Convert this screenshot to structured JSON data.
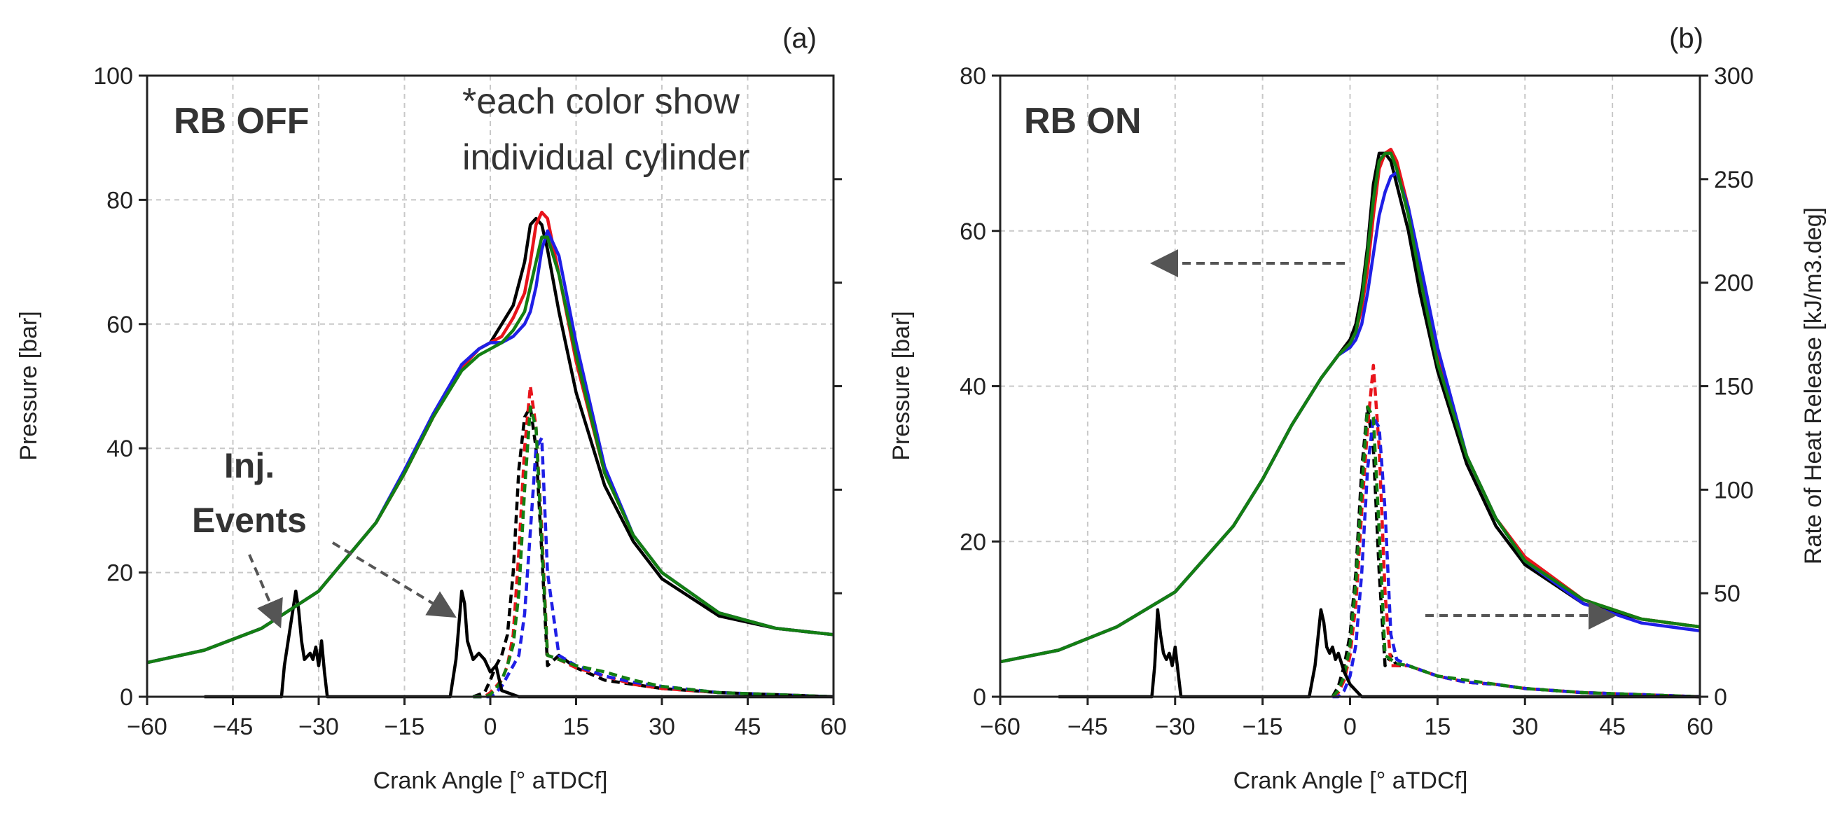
{
  "colors": {
    "black": "#000000",
    "red": "#e8141b",
    "blue": "#1f1fe6",
    "green": "#137f13",
    "arrow": "#555555",
    "grid": "#c8c8c8"
  },
  "chart_data": [
    {
      "type": "line",
      "panel_label": "(a)",
      "title": "RB OFF",
      "note_line1": "*each color show",
      "note_line2": "individual cylinder",
      "annotation_line1": "Inj.",
      "annotation_line2": "Events",
      "xlabel": "Crank Angle [° aTDCf]",
      "ylabel": "Pressure [bar]",
      "xlim": [
        -60,
        60
      ],
      "ylim": [
        0,
        100
      ],
      "xticks": [
        -60,
        -45,
        -30,
        -15,
        0,
        15,
        30,
        45,
        60
      ],
      "xtick_labels": [
        "−60",
        "−45",
        "−30",
        "−15",
        "0",
        "15",
        "30",
        "45",
        "60"
      ],
      "yticks": [
        0,
        20,
        40,
        60,
        80,
        100
      ],
      "ytick_labels": [
        "0",
        "20",
        "40",
        "60",
        "80",
        "100"
      ],
      "right_ylim": [
        0,
        300
      ],
      "right_yticks": [
        50,
        100,
        150,
        200,
        250
      ],
      "right_ytick_labels": [],
      "grid": true,
      "pressure_series": [
        {
          "name": "black",
          "x": [
            -60,
            -50,
            -40,
            -30,
            -20,
            -15,
            -10,
            -5,
            -2,
            0,
            2,
            4,
            6,
            7,
            8,
            9,
            10,
            12,
            15,
            20,
            25,
            30,
            40,
            50,
            60
          ],
          "y": [
            5.5,
            7.5,
            11,
            17,
            28,
            36,
            45,
            53,
            56,
            57,
            60,
            63,
            70,
            76,
            77,
            76,
            72,
            62,
            49,
            34,
            25,
            19,
            13,
            11,
            10
          ]
        },
        {
          "name": "red",
          "x": [
            -60,
            -50,
            -40,
            -30,
            -20,
            -15,
            -10,
            -5,
            -2,
            0,
            2,
            4,
            6,
            7,
            8,
            9,
            10,
            12,
            15,
            20,
            25,
            30,
            40,
            50,
            60
          ],
          "y": [
            5.5,
            7.5,
            11,
            17,
            28,
            36,
            45,
            53,
            56,
            57,
            58,
            61,
            65,
            70,
            76,
            78,
            77,
            68,
            54,
            36,
            26,
            20,
            13.5,
            11,
            10
          ]
        },
        {
          "name": "blue",
          "x": [
            -60,
            -50,
            -40,
            -30,
            -20,
            -15,
            -10,
            -5,
            -2,
            0,
            2,
            4,
            6,
            7,
            8,
            9,
            10,
            12,
            15,
            20,
            25,
            30,
            40,
            50,
            60
          ],
          "y": [
            5.5,
            7.5,
            11,
            17,
            28,
            36.5,
            45.5,
            53.5,
            56,
            57,
            57,
            58,
            60,
            62,
            66,
            72,
            75,
            71,
            57,
            37,
            26,
            20,
            13.5,
            11,
            10
          ]
        },
        {
          "name": "green",
          "x": [
            -60,
            -50,
            -40,
            -30,
            -20,
            -15,
            -10,
            -5,
            -2,
            0,
            2,
            4,
            6,
            7,
            8,
            9,
            10,
            12,
            15,
            20,
            25,
            30,
            40,
            50,
            60
          ],
          "y": [
            5.5,
            7.5,
            11,
            17,
            28,
            36,
            45,
            52.5,
            55,
            56,
            57,
            59,
            62,
            66,
            70,
            74,
            74,
            68,
            55,
            36,
            26,
            20,
            13.5,
            11,
            10
          ]
        }
      ],
      "heat_release_series": [
        {
          "name": "black",
          "x": [
            -3,
            -1,
            0,
            1,
            2,
            3,
            4,
            5,
            6,
            7,
            8,
            9,
            10,
            12,
            15,
            20,
            25,
            30,
            40,
            50,
            60
          ],
          "y": [
            0,
            2,
            8,
            15,
            20,
            30,
            60,
            110,
            135,
            140,
            120,
            70,
            15,
            20,
            14,
            8,
            6,
            4,
            2,
            1,
            0
          ]
        },
        {
          "name": "red",
          "x": [
            -3,
            -1,
            0,
            1,
            2,
            3,
            4,
            5,
            6,
            7,
            8,
            9,
            10,
            12,
            15,
            20,
            25,
            30,
            40,
            50,
            60
          ],
          "y": [
            0,
            0,
            2,
            5,
            8,
            15,
            30,
            70,
            120,
            150,
            130,
            80,
            20,
            18,
            14,
            10,
            6,
            4,
            2,
            1,
            0
          ]
        },
        {
          "name": "blue",
          "x": [
            -3,
            -1,
            0,
            1,
            2,
            3,
            4,
            5,
            6,
            7,
            8,
            9,
            10,
            12,
            15,
            20,
            25,
            30,
            40,
            50,
            60
          ],
          "y": [
            0,
            0,
            0,
            2,
            5,
            10,
            15,
            20,
            40,
            80,
            120,
            125,
            60,
            20,
            15,
            10,
            7,
            5,
            2,
            1,
            0
          ]
        },
        {
          "name": "green",
          "x": [
            -3,
            -1,
            0,
            1,
            2,
            3,
            4,
            5,
            6,
            7,
            8,
            9,
            10,
            12,
            15,
            20,
            25,
            30,
            40,
            50,
            60
          ],
          "y": [
            0,
            0,
            1,
            4,
            8,
            15,
            25,
            50,
            100,
            140,
            130,
            75,
            20,
            18,
            15,
            12,
            8,
            5,
            2,
            1,
            0
          ]
        }
      ],
      "injection_trace": {
        "x": [
          -50,
          -36.5,
          -36,
          -34,
          -33.5,
          -33,
          -32.5,
          -31.5,
          -31,
          -30.5,
          -30,
          -29.5,
          -29,
          -28.5,
          -8,
          -7,
          -6,
          -5,
          -4.5,
          -4,
          -3,
          -2,
          -1,
          0,
          1,
          2,
          5,
          10,
          20,
          60
        ],
        "y": [
          0,
          0,
          5,
          17,
          14,
          9,
          6,
          7,
          6,
          8,
          5,
          9,
          4,
          0,
          0,
          0,
          6,
          17,
          15,
          9,
          6,
          7,
          6,
          4,
          5,
          1,
          0,
          0,
          0,
          0
        ]
      }
    },
    {
      "type": "line",
      "panel_label": "(b)",
      "title": "RB ON",
      "xlabel": "Crank Angle [° aTDCf]",
      "ylabel": "Pressure [bar]",
      "right_ylabel": "Rate of Heat Release [kJ/m3.deg]",
      "xlim": [
        -60,
        60
      ],
      "ylim": [
        0,
        80
      ],
      "xticks": [
        -60,
        -45,
        -30,
        -15,
        0,
        15,
        30,
        45,
        60
      ],
      "xtick_labels": [
        "−60",
        "−45",
        "−30",
        "−15",
        "0",
        "15",
        "30",
        "45",
        "60"
      ],
      "yticks": [
        0,
        20,
        40,
        60,
        80
      ],
      "ytick_labels": [
        "0",
        "20",
        "40",
        "60",
        "80"
      ],
      "right_ylim": [
        0,
        300
      ],
      "right_yticks": [
        0,
        50,
        100,
        150,
        200,
        250,
        300
      ],
      "right_ytick_labels": [
        "0",
        "50",
        "100",
        "150",
        "200",
        "250",
        "300"
      ],
      "grid": true,
      "pressure_series": [
        {
          "name": "black",
          "x": [
            -60,
            -50,
            -40,
            -30,
            -20,
            -15,
            -10,
            -5,
            -2,
            0,
            1,
            2,
            3,
            4,
            5,
            6,
            7,
            8,
            10,
            12,
            15,
            20,
            25,
            30,
            40,
            50,
            60
          ],
          "y": [
            4.5,
            6,
            9,
            13.5,
            22,
            28,
            35,
            41,
            44,
            46,
            48,
            52,
            58,
            66,
            70,
            70,
            69,
            66,
            60,
            52,
            42,
            30,
            22,
            17,
            12,
            10,
            9
          ]
        },
        {
          "name": "red",
          "x": [
            -60,
            -50,
            -40,
            -30,
            -20,
            -15,
            -10,
            -5,
            -2,
            0,
            1,
            2,
            3,
            4,
            5,
            6,
            7,
            8,
            10,
            12,
            15,
            20,
            25,
            30,
            40,
            50,
            60
          ],
          "y": [
            4.5,
            6,
            9,
            13.5,
            22,
            28,
            35,
            41,
            44,
            45.5,
            47,
            50,
            55,
            62,
            68,
            70,
            70.5,
            69,
            63,
            55,
            44,
            31,
            23,
            18,
            12.5,
            10,
            9
          ]
        },
        {
          "name": "blue",
          "x": [
            -60,
            -50,
            -40,
            -30,
            -20,
            -15,
            -10,
            -5,
            -2,
            0,
            1,
            2,
            3,
            4,
            5,
            6,
            7,
            8,
            10,
            12,
            15,
            20,
            25,
            30,
            40,
            50,
            60
          ],
          "y": [
            4.5,
            6,
            9,
            13.5,
            22,
            28,
            35,
            41,
            44,
            45,
            46,
            48,
            52,
            57,
            62,
            65,
            67,
            67.5,
            63,
            56,
            45,
            31,
            23,
            17.5,
            12,
            9.5,
            8.5
          ]
        },
        {
          "name": "green",
          "x": [
            -60,
            -50,
            -40,
            -30,
            -20,
            -15,
            -10,
            -5,
            -2,
            0,
            1,
            2,
            3,
            4,
            5,
            6,
            7,
            8,
            10,
            12,
            15,
            20,
            25,
            30,
            40,
            50,
            60
          ],
          "y": [
            4.5,
            6,
            9,
            13.5,
            22,
            28,
            35,
            41,
            44,
            45.5,
            47,
            51,
            57,
            64,
            69,
            70,
            70,
            68,
            62,
            54,
            43,
            31,
            23,
            17.5,
            12.5,
            10,
            9
          ]
        }
      ],
      "heat_release_series": [
        {
          "name": "black",
          "x": [
            -3,
            -2,
            -1,
            0,
            1,
            2,
            3,
            4,
            5,
            6,
            7,
            8,
            10,
            15,
            20,
            25,
            30,
            40,
            50,
            60
          ],
          "y": [
            0,
            5,
            15,
            30,
            60,
            110,
            140,
            120,
            60,
            15,
            20,
            15,
            15,
            10,
            7,
            6,
            4,
            2,
            1,
            0
          ]
        },
        {
          "name": "red",
          "x": [
            -3,
            -2,
            -1,
            0,
            1,
            2,
            3,
            4,
            5,
            6,
            7,
            8,
            10,
            15,
            20,
            25,
            30,
            40,
            50,
            60
          ],
          "y": [
            0,
            2,
            8,
            20,
            45,
            90,
            130,
            160,
            120,
            50,
            15,
            15,
            15,
            10,
            7,
            6,
            4,
            2,
            1,
            0
          ]
        },
        {
          "name": "blue",
          "x": [
            -3,
            -2,
            -1,
            0,
            1,
            2,
            3,
            4,
            5,
            6,
            7,
            8,
            10,
            15,
            20,
            25,
            30,
            40,
            50,
            60
          ],
          "y": [
            0,
            0,
            3,
            10,
            25,
            60,
            110,
            135,
            130,
            90,
            30,
            18,
            15,
            10,
            7,
            6,
            4,
            2,
            1,
            0
          ]
        },
        {
          "name": "green",
          "x": [
            -3,
            -2,
            -1,
            0,
            1,
            2,
            3,
            4,
            5,
            6,
            7,
            8,
            10,
            15,
            20,
            25,
            30,
            40,
            50,
            60
          ],
          "y": [
            0,
            3,
            10,
            25,
            55,
            100,
            140,
            135,
            80,
            20,
            18,
            16,
            15,
            10,
            8,
            6,
            4,
            2,
            1,
            0
          ]
        }
      ],
      "injection_trace": {
        "x": [
          -50,
          -34,
          -33.5,
          -33,
          -32.5,
          -32,
          -31.5,
          -31,
          -30.5,
          -30,
          -29.5,
          -29,
          -10,
          -7,
          -6,
          -5,
          -4.5,
          -4,
          -3.5,
          -3,
          -2.5,
          -2,
          -1,
          0,
          2,
          10,
          60
        ],
        "y": [
          0,
          0,
          5,
          14,
          10,
          7,
          6,
          7,
          5,
          8,
          4,
          0,
          0,
          0,
          5,
          14,
          12,
          8,
          7,
          8,
          6,
          7,
          4,
          2,
          0,
          0,
          0
        ]
      }
    }
  ]
}
